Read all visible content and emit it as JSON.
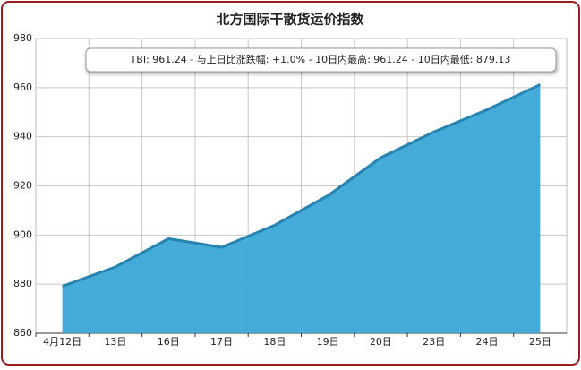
{
  "chart_data": {
    "type": "area",
    "title": "北方国际干散货运价指数",
    "annotation": "TBI:  961.24  - 与上日比涨跌幅:  +1.0%  - 10日内最高:  961.24  - 10日内最低:  879.13",
    "categories": [
      "4月12日",
      "13日",
      "16日",
      "17日",
      "18日",
      "19日",
      "20日",
      "23日",
      "24日",
      "25日"
    ],
    "values": [
      879.13,
      887,
      898.5,
      895,
      904,
      916,
      931.5,
      942,
      951,
      961.24
    ],
    "color": "#3ba6d6",
    "ylim": [
      860,
      980
    ],
    "yticks": [
      860,
      880,
      900,
      920,
      940,
      960,
      980
    ],
    "grid": true
  }
}
